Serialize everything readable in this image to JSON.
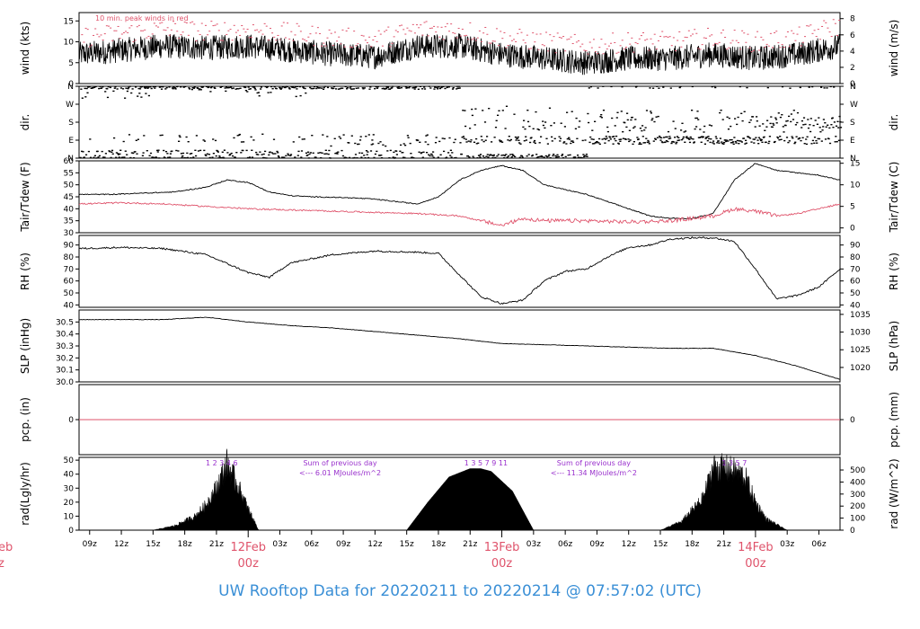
{
  "title": "UW Rooftop Data for 20220211  to  20220214 @ 07:57:02  (UTC)",
  "colors": {
    "line": "#000000",
    "dewpoint": "#df536b",
    "peak": "#df536b",
    "annotation": "#9a32cd",
    "date_label": "#df536b",
    "title": "#3a8fd6"
  },
  "time_axis": {
    "start_hour": 8,
    "end_hour": 80,
    "tick_labels": [
      "09z",
      "12z",
      "15z",
      "18z",
      "21z",
      "03z",
      "06z",
      "09z",
      "12z",
      "15z",
      "18z",
      "21z",
      "03z",
      "06z",
      "09z",
      "12z",
      "15z",
      "18z",
      "21z",
      "03z",
      "06z"
    ],
    "tick_hours": [
      9,
      12,
      15,
      18,
      21,
      27,
      30,
      33,
      36,
      39,
      42,
      45,
      51,
      54,
      57,
      60,
      63,
      66,
      69,
      75,
      78
    ],
    "date_marks": [
      {
        "date": "12Feb",
        "hour_label": "00z",
        "hour": 24
      },
      {
        "date": "13Feb",
        "hour_label": "00z",
        "hour": 48
      },
      {
        "date": "14Feb",
        "hour_label": "00z",
        "hour": 72
      }
    ],
    "cut_left_date": "eb",
    "cut_left_hour": "z"
  },
  "panels": {
    "wind": {
      "left_label": "wind (kts)",
      "right_label": "wind (m/s)",
      "left_ticks": [
        "0",
        "5",
        "10",
        "15"
      ],
      "right_ticks": [
        "0",
        "2",
        "4",
        "6",
        "8"
      ],
      "note": "10 min. peak winds in red"
    },
    "dir": {
      "left_label": "dir.",
      "right_label": "dir.",
      "left_ticks": [
        "N",
        "E",
        "S",
        "W",
        "N"
      ],
      "right_ticks": [
        "N",
        "E",
        "S",
        "W",
        "N"
      ]
    },
    "temp": {
      "left_label": "Tair/Tdew (F)",
      "right_label": "Tair/Tdew (C)",
      "left_ticks": [
        "30",
        "35",
        "40",
        "45",
        "50",
        "55",
        "60"
      ],
      "right_ticks": [
        "0",
        "5",
        "10",
        "15"
      ]
    },
    "rh": {
      "left_label": "RH (%)",
      "right_label": "RH (%)",
      "left_ticks": [
        "40",
        "50",
        "60",
        "70",
        "80",
        "90"
      ],
      "right_ticks": [
        "40",
        "50",
        "60",
        "70",
        "80",
        "90"
      ]
    },
    "slp": {
      "left_label": "SLP (inHg)",
      "right_label": "SLP (hPa)",
      "left_ticks": [
        "30.0",
        "30.1",
        "30.2",
        "30.3",
        "30.4",
        "30.5"
      ],
      "right_ticks": [
        "1020",
        "1025",
        "1030",
        "1035"
      ]
    },
    "pcp": {
      "left_label": "pcp. (in)",
      "right_label": "pcp. (mm)",
      "left_ticks": [
        "0"
      ],
      "right_ticks": [
        "0"
      ]
    },
    "rad": {
      "left_label": "rad(Lgly/hr)",
      "right_label": "rad (W/m^2)",
      "left_ticks": [
        "0",
        "10",
        "20",
        "30",
        "40",
        "50"
      ],
      "right_ticks": [
        "0",
        "100",
        "200",
        "300",
        "400",
        "500"
      ],
      "day_marks": [
        {
          "text": "1  2  3  4      6",
          "hour": 21.5
        },
        {
          "text": "1  3  5  7  9    11",
          "hour": 46.5
        },
        {
          "text": "1  3  5  7",
          "hour": 70.0
        }
      ],
      "sums": [
        {
          "line1": "Sum of previous day",
          "line2": "<--- 6.01 MJoules/m^2",
          "hour": 32.7
        },
        {
          "line1": "Sum of previous day",
          "line2": "<--- 11.34 MJoules/m^2",
          "hour": 56.7
        }
      ]
    }
  },
  "chart_data": {
    "type": "line",
    "x_unit": "hours since 20220211 00z",
    "xlim": [
      8,
      80
    ],
    "series": [
      {
        "name": "wind (kts)",
        "x": [
          8,
          12,
          16,
          20,
          24,
          28,
          32,
          36,
          40,
          44,
          48,
          52,
          56,
          60,
          64,
          68,
          72,
          76,
          80
        ],
        "values": [
          7,
          8,
          9,
          8.5,
          9,
          8,
          7,
          6.5,
          9,
          9,
          7,
          6,
          5,
          6,
          6,
          7,
          6,
          7,
          9
        ],
        "ylim": [
          0,
          17
        ]
      },
      {
        "name": "10 min. peak winds",
        "x": [
          8,
          12,
          16,
          20,
          24,
          28,
          32,
          36,
          40,
          44,
          48,
          52,
          56,
          60,
          64,
          68,
          72,
          76,
          80
        ],
        "values": [
          11,
          12,
          13,
          12.5,
          13,
          12,
          11,
          10.5,
          13,
          13,
          11,
          10,
          9,
          10,
          10,
          11,
          10,
          11,
          14
        ],
        "ylim": [
          0,
          17
        ]
      },
      {
        "name": "Tair (F)",
        "x": [
          8,
          11,
          14,
          17,
          20,
          22,
          24,
          26,
          28,
          30,
          32,
          34,
          36,
          38,
          40,
          42,
          44,
          46,
          48,
          50,
          52,
          54,
          56,
          58,
          60,
          62,
          64,
          66,
          68,
          70,
          72,
          74,
          76,
          78,
          80
        ],
        "values": [
          46,
          46,
          46.5,
          47,
          49,
          52,
          51,
          47,
          45.5,
          45,
          44.8,
          44.5,
          44,
          43,
          42,
          45,
          52,
          56,
          58,
          56,
          50,
          48,
          46,
          43,
          40,
          37,
          36,
          36,
          38,
          52,
          59,
          56,
          55,
          54,
          52
        ],
        "ylim": [
          30,
          60
        ]
      },
      {
        "name": "Tdew (F)",
        "x": [
          8,
          12,
          16,
          20,
          24,
          28,
          32,
          36,
          40,
          44,
          48,
          50,
          52,
          56,
          60,
          64,
          68,
          70,
          72,
          74,
          76,
          78,
          80
        ],
        "values": [
          42,
          42.5,
          42,
          41,
          40,
          39.5,
          39,
          38.5,
          38,
          37,
          33,
          36,
          35,
          35,
          34.5,
          35,
          37,
          40,
          39,
          37,
          38,
          40,
          42
        ],
        "ylim": [
          30,
          60
        ]
      },
      {
        "name": "RH (%)",
        "x": [
          8,
          12,
          16,
          20,
          24,
          26,
          28,
          32,
          36,
          40,
          42,
          44,
          46,
          48,
          50,
          52,
          54,
          56,
          58,
          60,
          62,
          64,
          66,
          68,
          70,
          72,
          74,
          76,
          78,
          80
        ],
        "values": [
          87,
          88,
          87,
          82,
          67,
          63,
          75,
          82,
          85,
          84,
          83,
          65,
          47,
          41,
          44,
          60,
          68,
          70,
          80,
          88,
          90,
          95,
          96,
          96,
          93,
          70,
          45,
          48,
          55,
          70
        ],
        "ylim": [
          38,
          98
        ]
      },
      {
        "name": "SLP (inHg)",
        "x": [
          8,
          12,
          16,
          20,
          24,
          28,
          32,
          36,
          40,
          44,
          48,
          52,
          56,
          60,
          64,
          68,
          72,
          76,
          80
        ],
        "values": [
          30.52,
          30.52,
          30.52,
          30.54,
          30.5,
          30.47,
          30.45,
          30.42,
          30.39,
          30.36,
          30.32,
          30.31,
          30.3,
          30.29,
          30.28,
          30.28,
          30.22,
          30.13,
          30.02
        ],
        "ylim": [
          30.0,
          30.6
        ]
      },
      {
        "name": "pcp. (in)",
        "x": [
          8,
          80
        ],
        "values": [
          0,
          0
        ],
        "ylim": [
          -0.5,
          0.5
        ]
      },
      {
        "name": "rad (Lgly/hr)",
        "x": [
          15,
          17,
          19,
          20,
          21,
          22,
          23,
          24,
          25,
          39,
          41,
          43,
          45,
          46,
          47,
          48,
          49,
          51,
          63,
          65,
          67,
          68,
          69,
          70,
          71,
          72,
          73,
          75
        ],
        "values": [
          0,
          3,
          10,
          18,
          30,
          47,
          32,
          15,
          0,
          0,
          20,
          38,
          44,
          44,
          42,
          35,
          28,
          0,
          0,
          6,
          22,
          44,
          44,
          42,
          38,
          20,
          8,
          0
        ],
        "ylim": [
          0,
          52
        ]
      }
    ],
    "direction_note": "wind direction scatter: mostly N (0-30) early, shifting to E-SE after 13Feb 00z",
    "sum_previous_day_MJ_m2": [
      6.01,
      11.34
    ]
  }
}
